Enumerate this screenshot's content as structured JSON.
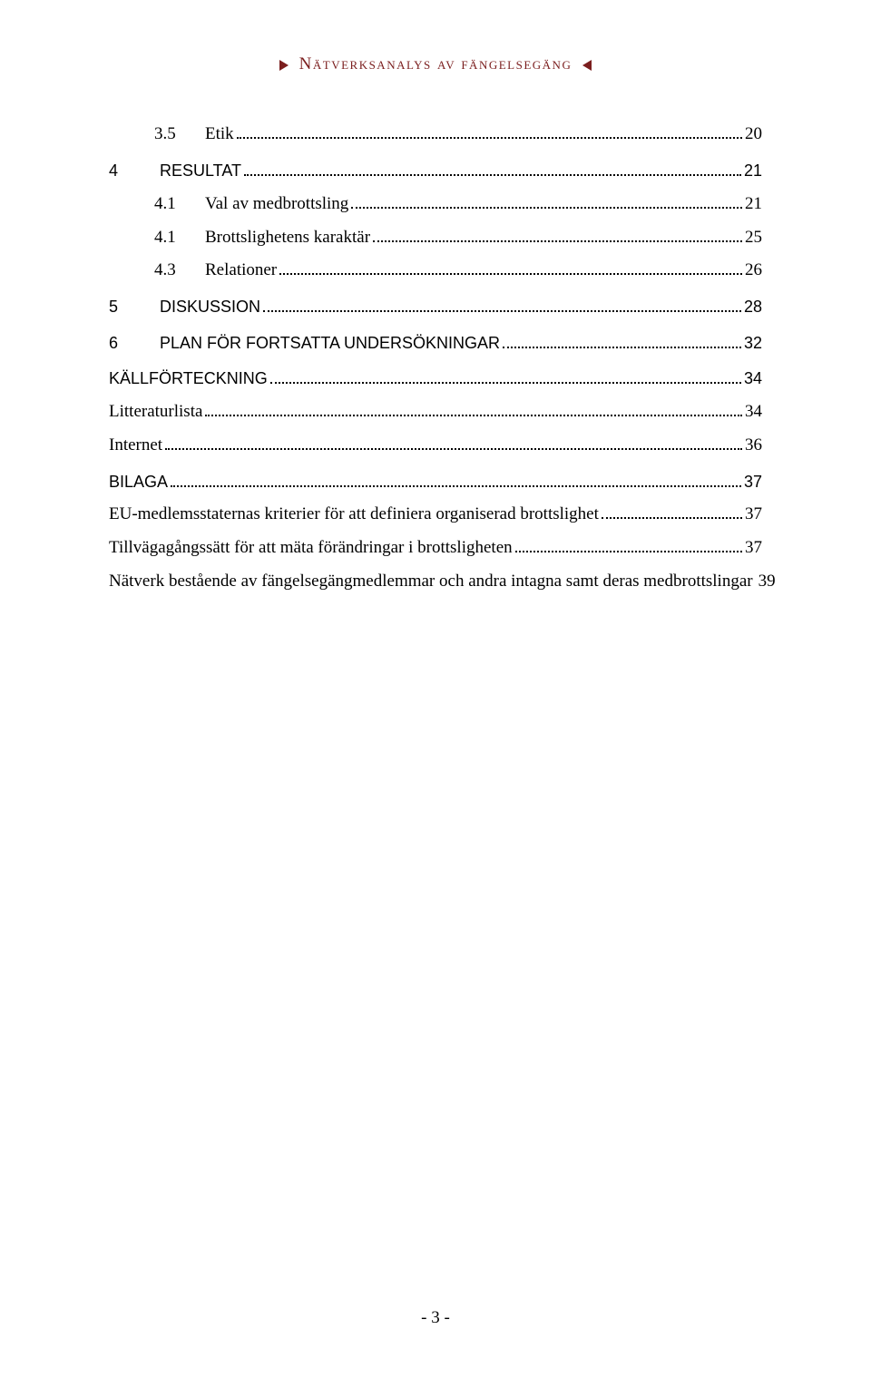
{
  "header": {
    "title": "Nätverksanalys av fängelsegäng"
  },
  "toc": {
    "items": [
      {
        "num": "3.5",
        "label": "Etik",
        "page": "20",
        "style": "serif",
        "indent": "sub",
        "numcol": true,
        "gap": false
      },
      {
        "num": "4",
        "label": "RESULTAT",
        "page": "21",
        "style": "sans",
        "indent": "none",
        "numcol": true,
        "gap": true
      },
      {
        "num": "4.1",
        "label": "Val av medbrottsling",
        "page": "21",
        "style": "serif",
        "indent": "sub",
        "numcol": true,
        "gap": false
      },
      {
        "num": "4.1",
        "label": "Brottslighetens karaktär",
        "page": "25",
        "style": "serif",
        "indent": "sub",
        "numcol": true,
        "gap": false
      },
      {
        "num": "4.3",
        "label": "Relationer",
        "page": "26",
        "style": "serif",
        "indent": "sub",
        "numcol": true,
        "gap": false
      },
      {
        "num": "5",
        "label": "DISKUSSION",
        "page": "28",
        "style": "sans",
        "indent": "none",
        "numcol": true,
        "gap": true
      },
      {
        "num": "6",
        "label": "PLAN FÖR FORTSATTA UNDERSÖKNINGAR",
        "page": "32",
        "style": "sans",
        "indent": "none",
        "numcol": true,
        "gap": true
      },
      {
        "num": "",
        "label": "KÄLLFÖRTECKNING",
        "page": "34",
        "style": "sans",
        "indent": "none",
        "numcol": false,
        "gap": true
      },
      {
        "num": "",
        "label": "Litteraturlista",
        "page": "34",
        "style": "serif",
        "indent": "none",
        "numcol": false,
        "gap": false
      },
      {
        "num": "",
        "label": "Internet",
        "page": "36",
        "style": "serif",
        "indent": "none",
        "numcol": false,
        "gap": false
      },
      {
        "num": "",
        "label": "BILAGA",
        "page": "37",
        "style": "sans",
        "indent": "none",
        "numcol": false,
        "gap": true
      },
      {
        "num": "",
        "label": "EU-medlemsstaternas kriterier för att definiera organiserad brottslighet",
        "page": "37",
        "style": "serif",
        "indent": "none",
        "numcol": false,
        "gap": false
      },
      {
        "num": "",
        "label": "Tillvägagångssätt för att mäta förändringar i brottsligheten",
        "page": "37",
        "style": "serif",
        "indent": "none",
        "numcol": false,
        "gap": false
      },
      {
        "num": "",
        "label": "Nätverk bestående av fängelsegängmedlemmar och andra intagna samt deras medbrottslingar",
        "page": "39",
        "style": "serif",
        "indent": "none",
        "numcol": false,
        "gap": false
      }
    ]
  },
  "footer": {
    "page_number": "- 3 -"
  }
}
